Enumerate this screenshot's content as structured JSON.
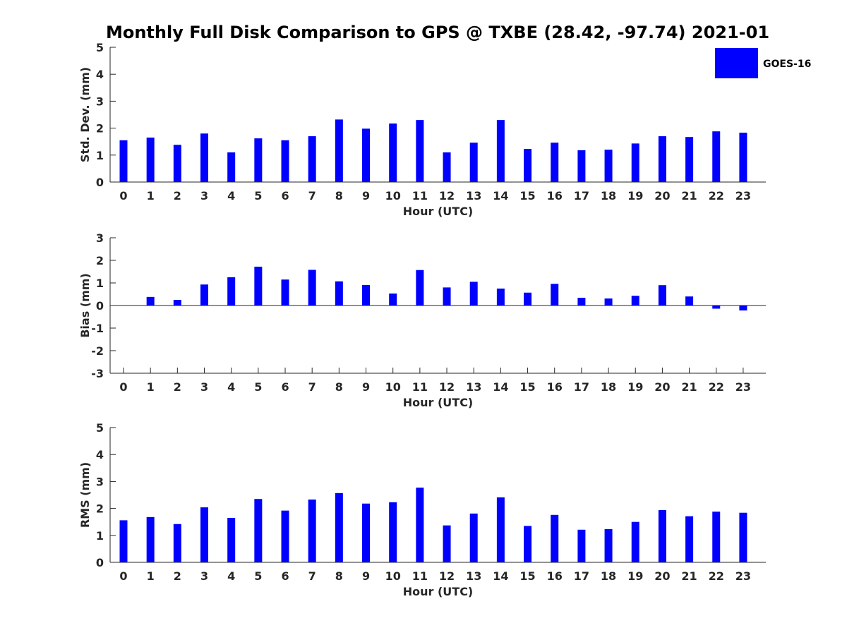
{
  "title": "Monthly Full Disk Comparison to GPS @ TXBE (28.42, -97.74) 2021-01",
  "legend": {
    "label": "GOES-16",
    "placement": "top-right"
  },
  "colors": {
    "bar": "#0000ff",
    "axis": "#262626"
  },
  "chart_data": [
    {
      "type": "bar",
      "title": "",
      "xlabel": "Hour (UTC)",
      "ylabel": "Std. Dev. (mm)",
      "ylim": [
        0,
        5
      ],
      "yticks": [
        0,
        1,
        2,
        3,
        4,
        5
      ],
      "categories": [
        "0",
        "1",
        "2",
        "3",
        "4",
        "5",
        "6",
        "7",
        "8",
        "9",
        "10",
        "11",
        "12",
        "13",
        "14",
        "15",
        "16",
        "17",
        "18",
        "19",
        "20",
        "21",
        "22",
        "23"
      ],
      "series": [
        {
          "name": "GOES-16",
          "values": [
            1.55,
            1.65,
            1.38,
            1.8,
            1.1,
            1.62,
            1.55,
            1.7,
            2.32,
            1.98,
            2.17,
            2.3,
            1.1,
            1.46,
            2.3,
            1.23,
            1.46,
            1.18,
            1.2,
            1.43,
            1.7,
            1.67,
            1.88,
            1.83
          ]
        }
      ],
      "grid": false
    },
    {
      "type": "bar",
      "title": "",
      "xlabel": "Hour (UTC)",
      "ylabel": "Bias (mm)",
      "ylim": [
        -3,
        3
      ],
      "yticks": [
        -3,
        -2,
        -1,
        0,
        1,
        2,
        3
      ],
      "categories": [
        "0",
        "1",
        "2",
        "3",
        "4",
        "5",
        "6",
        "7",
        "8",
        "9",
        "10",
        "11",
        "12",
        "13",
        "14",
        "15",
        "16",
        "17",
        "18",
        "19",
        "20",
        "21",
        "22",
        "23"
      ],
      "series": [
        {
          "name": "GOES-16",
          "values": [
            0.0,
            0.38,
            0.25,
            0.93,
            1.25,
            1.72,
            1.15,
            1.58,
            1.07,
            0.91,
            0.53,
            1.57,
            0.8,
            1.05,
            0.75,
            0.57,
            0.96,
            0.34,
            0.31,
            0.43,
            0.9,
            0.4,
            -0.14,
            -0.22
          ]
        }
      ],
      "grid": false
    },
    {
      "type": "bar",
      "title": "",
      "xlabel": "Hour (UTC)",
      "ylabel": "RMS (mm)",
      "ylim": [
        0,
        5
      ],
      "yticks": [
        0,
        1,
        2,
        3,
        4,
        5
      ],
      "categories": [
        "0",
        "1",
        "2",
        "3",
        "4",
        "5",
        "6",
        "7",
        "8",
        "9",
        "10",
        "11",
        "12",
        "13",
        "14",
        "15",
        "16",
        "17",
        "18",
        "19",
        "20",
        "21",
        "22",
        "23"
      ],
      "series": [
        {
          "name": "GOES-16",
          "values": [
            1.56,
            1.68,
            1.42,
            2.04,
            1.65,
            2.35,
            1.92,
            2.33,
            2.57,
            2.18,
            2.23,
            2.77,
            1.37,
            1.81,
            2.41,
            1.35,
            1.76,
            1.21,
            1.23,
            1.5,
            1.94,
            1.71,
            1.88,
            1.84
          ]
        }
      ],
      "grid": false
    }
  ]
}
